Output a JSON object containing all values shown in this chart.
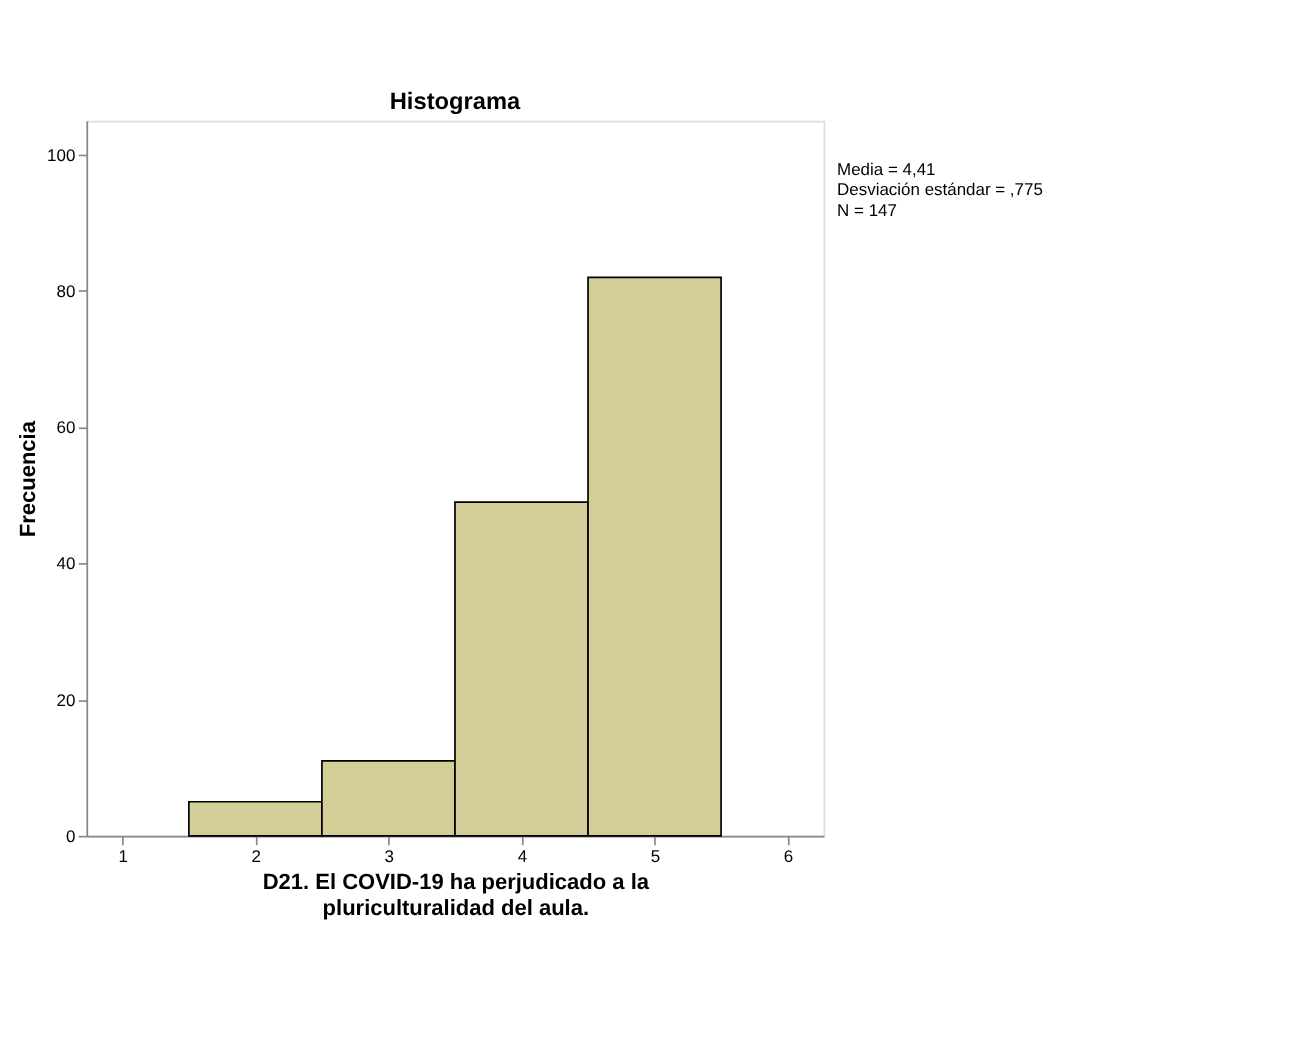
{
  "chart_data": {
    "type": "histogram",
    "title": "Histograma",
    "xlabel": "D21. El COVID-19 ha perjudicado a la pluriculturalidad del aula.",
    "ylabel": "Frecuencia",
    "bins": [
      1.5,
      2.5,
      3.5,
      4.5,
      5.5
    ],
    "values": [
      5,
      11,
      49,
      82
    ],
    "color": "#d3ce97",
    "xlim": [
      0.73,
      6.27
    ],
    "xticks": [
      1,
      2,
      3,
      4,
      5,
      6
    ],
    "ylim": [
      0,
      105
    ],
    "yticks": [
      0,
      20,
      40,
      60,
      80,
      100
    ],
    "grid": false,
    "annotations": [
      "Media = 4,41",
      "Desviación estándar = ,775",
      "N = 147"
    ]
  }
}
